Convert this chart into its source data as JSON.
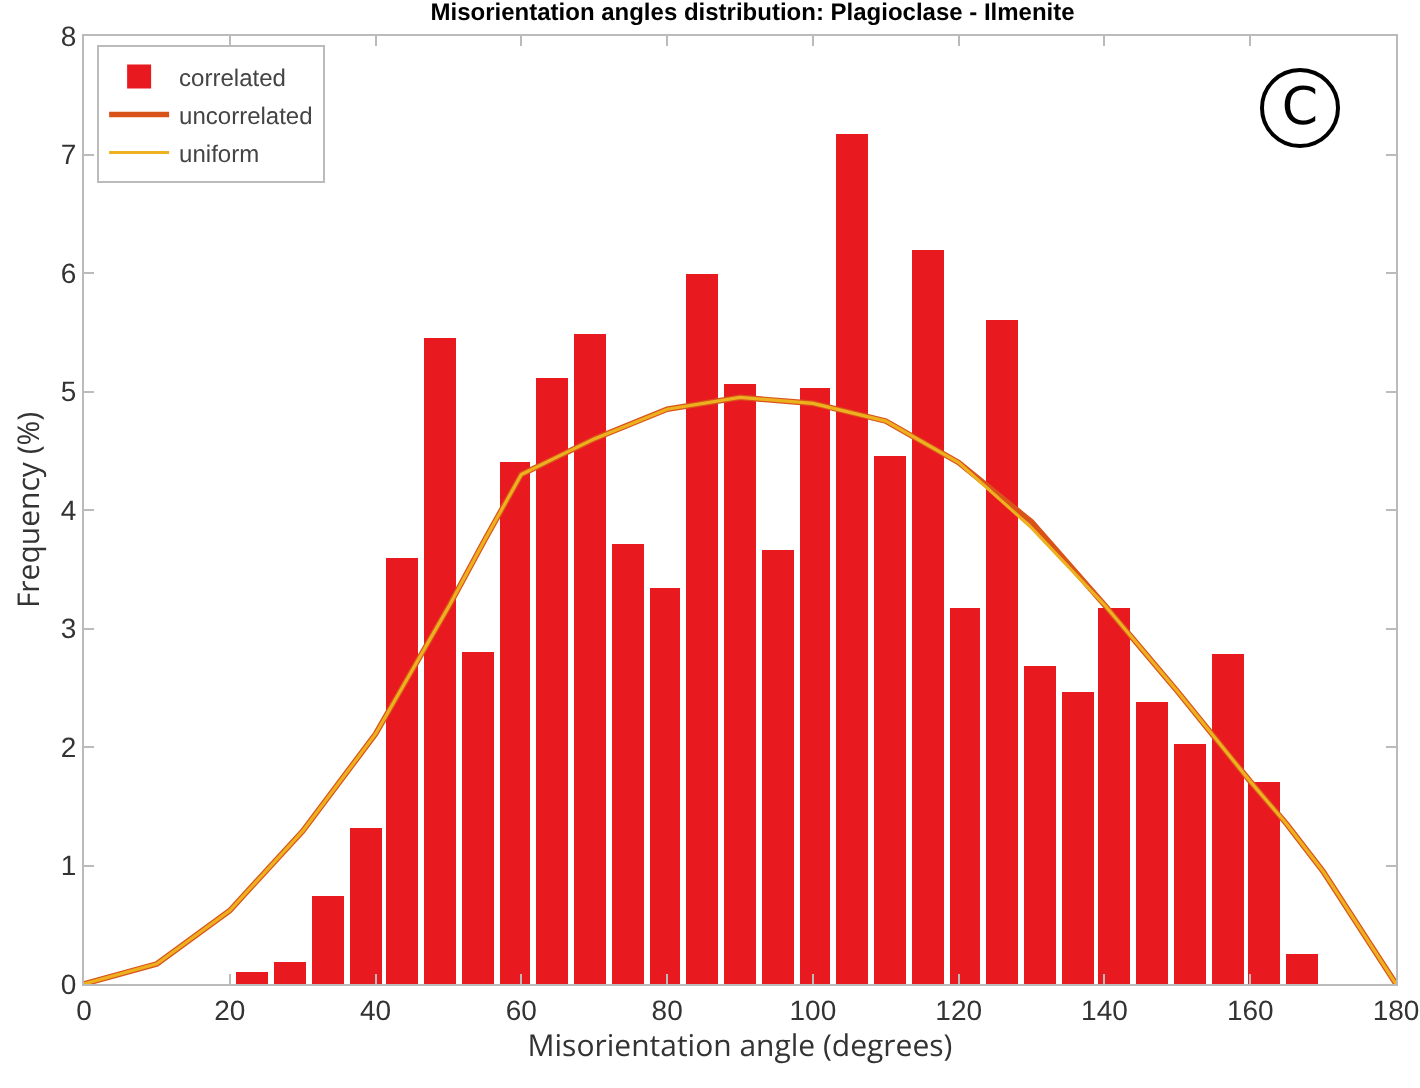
{
  "chart_data": {
    "type": "histogram",
    "title": "Misorientation angles distribution: Plagioclase - Ilmenite",
    "xlabel": "Misorientation angle (degrees)",
    "ylabel": "Frequency (%)",
    "bins": [
      20.57,
      25.71,
      30.86,
      36,
      41.14,
      46.29,
      51.43,
      56.57,
      61.71,
      66.86,
      72,
      77.14,
      82.29,
      87.43,
      92.57,
      97.71,
      102.86,
      108,
      113.14,
      118.29,
      123.43,
      128.57,
      133.71,
      138.86,
      144,
      149.14,
      154.29,
      159.43,
      164.57,
      169.71
    ],
    "series": [
      {
        "name": "correlated",
        "color": "#e8191f",
        "values": [
          0.1,
          0.18,
          0.74,
          1.31,
          3.6,
          5.46,
          2.81,
          4.41,
          5.11,
          5.49,
          3.72,
          3.34,
          6.0,
          5.07,
          3.66,
          5.03,
          7.17,
          4.45,
          6.2,
          3.17,
          5.6,
          2.69,
          2.46,
          3.17,
          2.38,
          2.02,
          2.79,
          1.71,
          0.26
        ]
      },
      {
        "name": "uncorrelated",
        "type": "line",
        "color": "#d95319",
        "x": [
          0,
          10,
          20,
          30,
          40,
          50,
          55,
          60,
          65,
          70,
          80,
          90,
          100,
          110,
          120,
          130,
          140,
          150,
          160,
          165,
          170,
          180
        ],
        "values": [
          0,
          0.17,
          0.62,
          1.29,
          2.11,
          3.18,
          3.75,
          4.3,
          4.45,
          4.6,
          4.85,
          4.95,
          4.9,
          4.75,
          4.4,
          3.9,
          3.2,
          2.47,
          1.71,
          1.35,
          0.95,
          0
        ]
      },
      {
        "name": "uniform",
        "type": "line",
        "color": "#edb120",
        "x": [
          0,
          10,
          20,
          30,
          40,
          50,
          55,
          60,
          65,
          70,
          80,
          90,
          100,
          110,
          120,
          130,
          140,
          150,
          160,
          165,
          170,
          180
        ],
        "values": [
          0,
          0.17,
          0.62,
          1.29,
          2.11,
          3.18,
          3.75,
          4.3,
          4.45,
          4.6,
          4.85,
          4.95,
          4.9,
          4.75,
          4.4,
          3.85,
          3.2,
          2.47,
          1.71,
          1.35,
          0.95,
          0
        ]
      }
    ],
    "xlim": [
      0,
      180
    ],
    "xticks": [
      0,
      20,
      40,
      60,
      80,
      100,
      120,
      140,
      160,
      180
    ],
    "ylim": [
      0,
      8
    ],
    "yticks": [
      0,
      1,
      2,
      3,
      4,
      5,
      6,
      7,
      8
    ],
    "grid": false,
    "legend": "top left",
    "line_style": "solid",
    "marker": "none",
    "annotations": [
      "C"
    ]
  }
}
